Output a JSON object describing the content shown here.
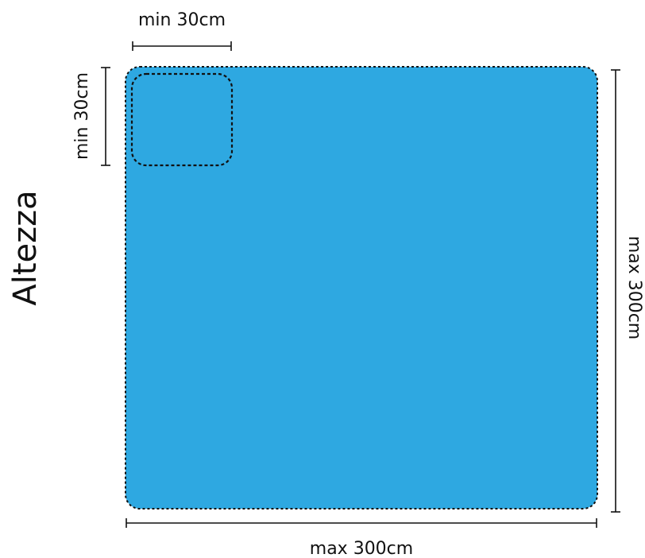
{
  "title": "Altezza",
  "dimensions": {
    "min_width": "min 30cm",
    "min_height": "min 30cm",
    "max_width": "max 300cm",
    "max_height": "max 300cm"
  },
  "colors": {
    "panel_fill": "#2ea8e1",
    "line": "#111111"
  }
}
